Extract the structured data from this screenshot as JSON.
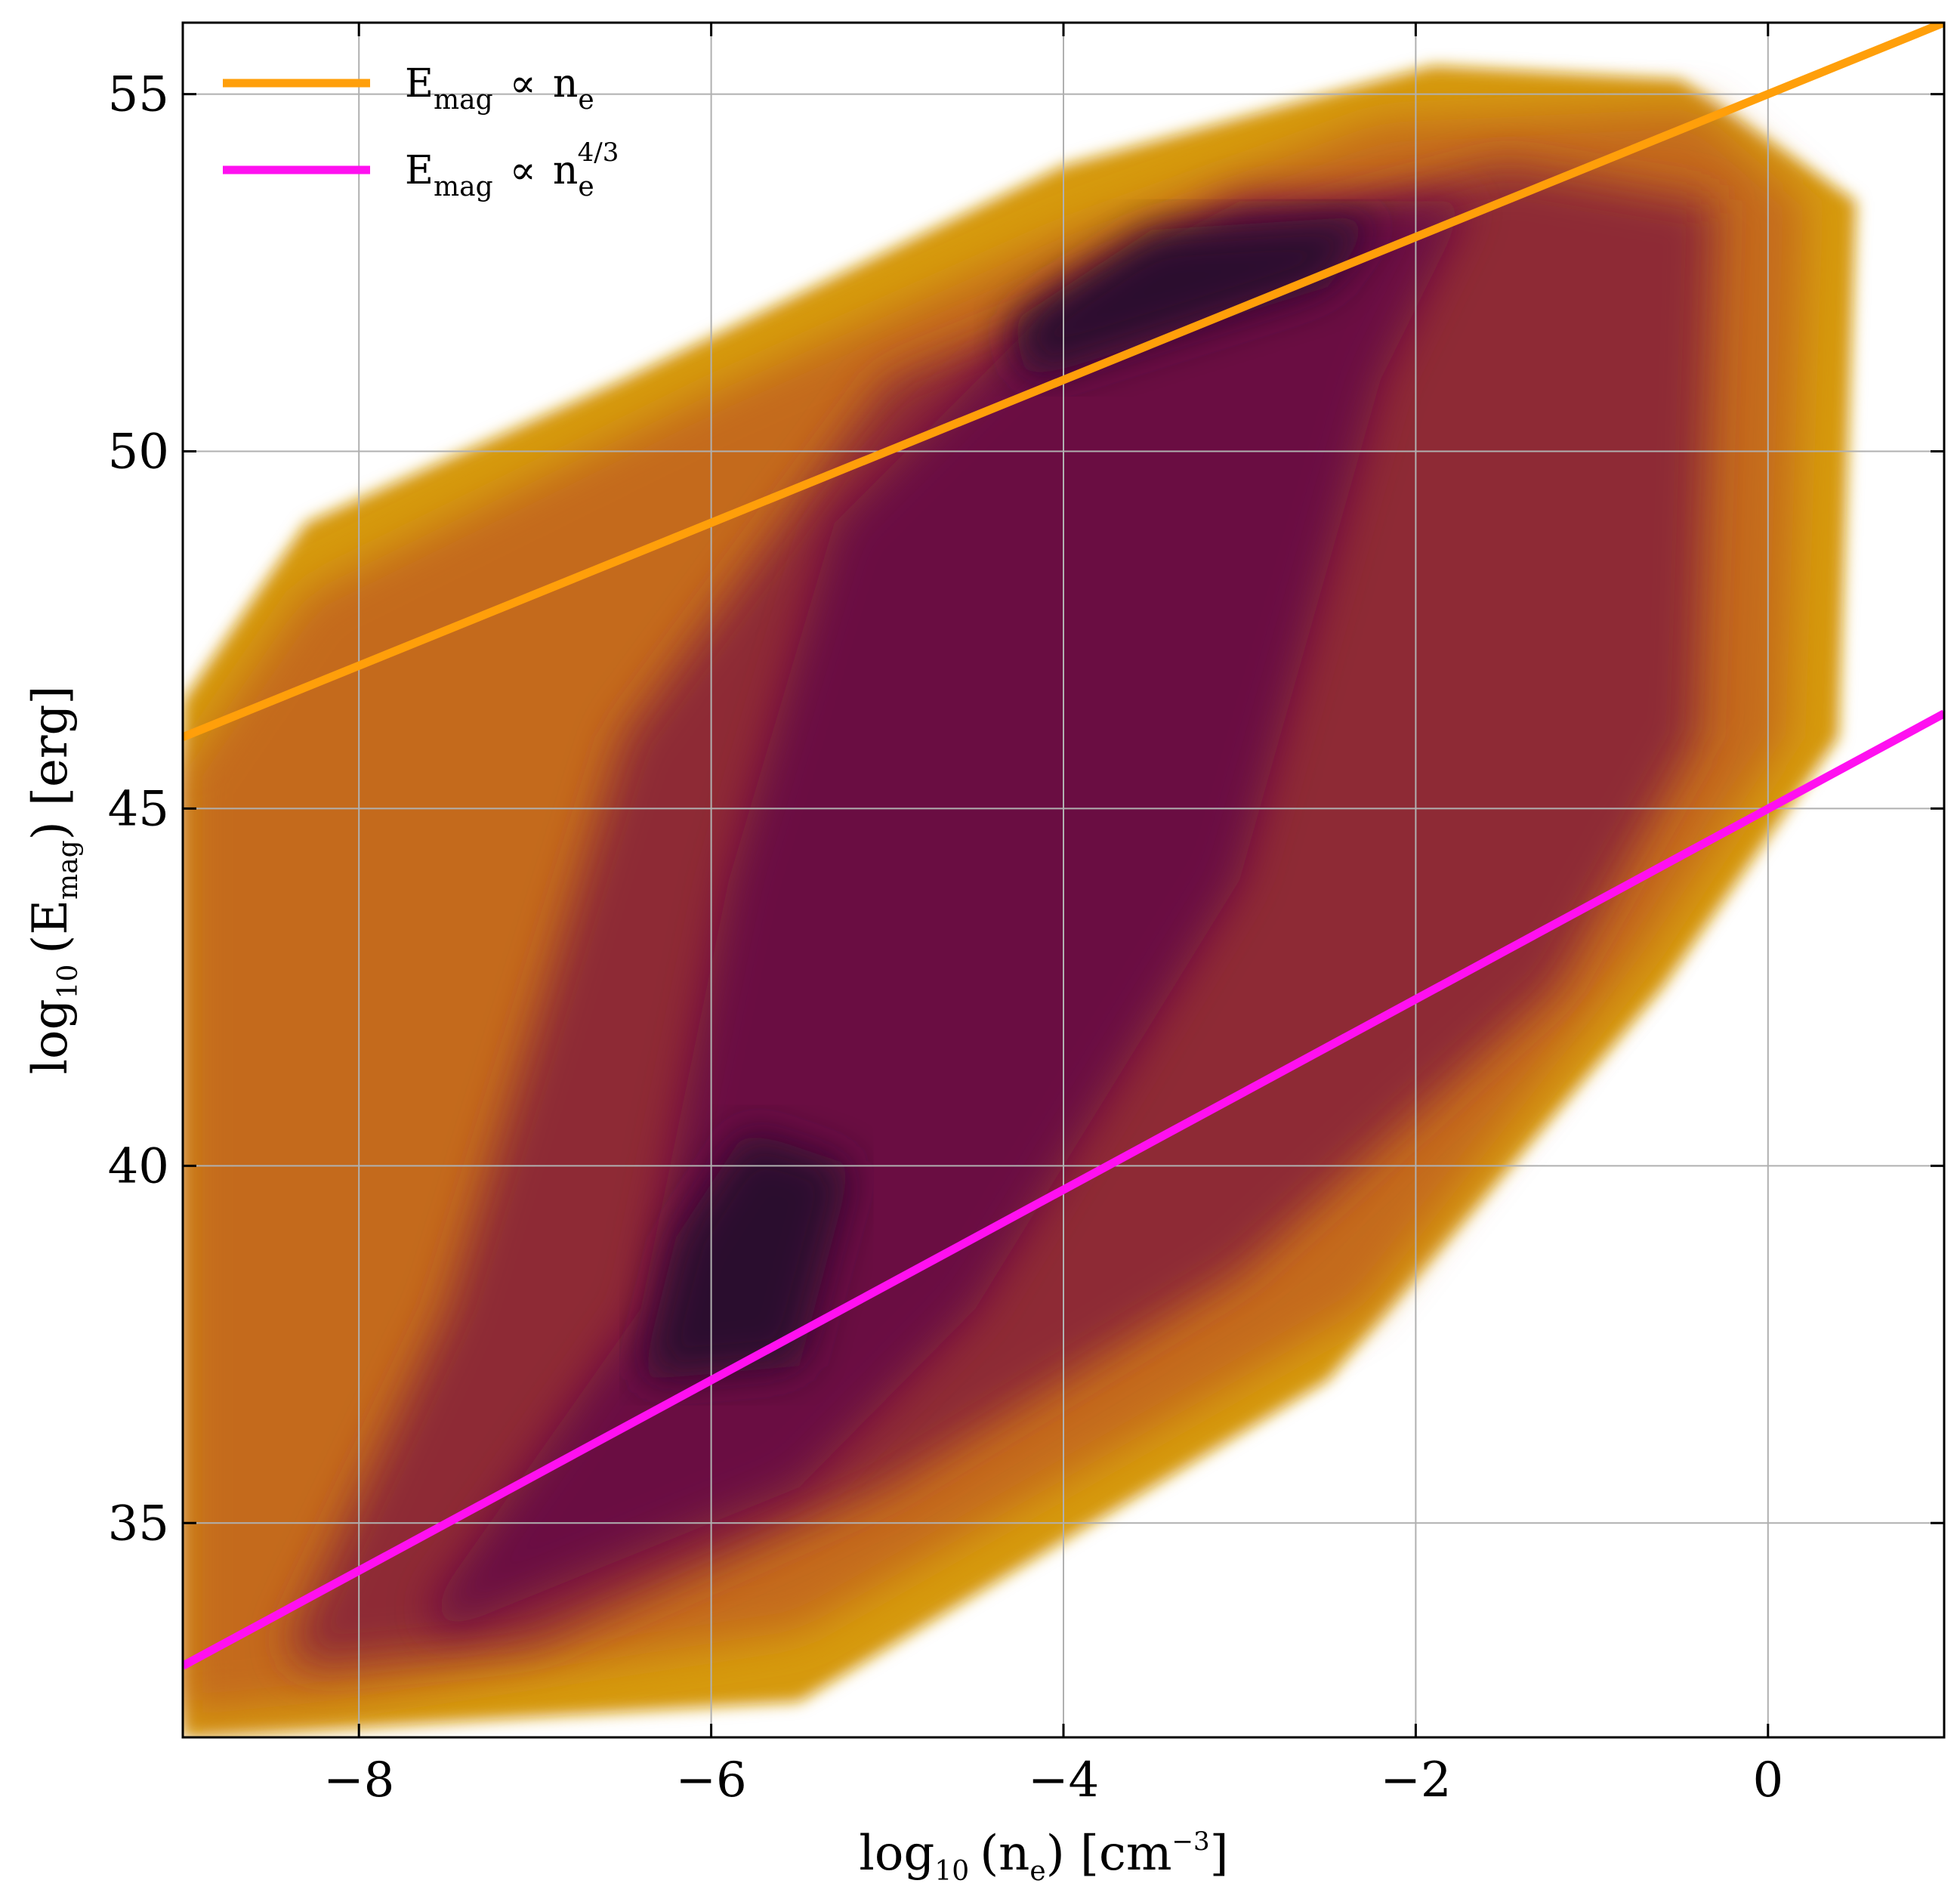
{
  "chart_data": {
    "type": "heatmap",
    "title": "",
    "x_axis": {
      "label_parts": {
        "base": "log",
        "sub": "10",
        "quantity": "(n",
        "quantity_sub": "e",
        "unit": ") [cm",
        "unit_sup": "−3",
        "end": "]"
      },
      "range": [
        -9,
        1
      ],
      "ticks": [
        -8,
        -6,
        -4,
        -2,
        0
      ],
      "tick_labels": [
        "−8",
        "−6",
        "−4",
        "−2",
        "0"
      ]
    },
    "y_axis": {
      "label_parts": {
        "base": "log",
        "sub": "10",
        "quantity": "(E",
        "quantity_sub": "mag",
        "unit": ") [erg]"
      },
      "range": [
        32,
        56
      ],
      "ticks": [
        35,
        40,
        45,
        50,
        55
      ],
      "tick_labels": [
        "35",
        "40",
        "45",
        "50",
        "55"
      ]
    },
    "grid": true,
    "legend_position": "top-left",
    "series": [
      {
        "name_parts": {
          "e": "E",
          "e_sub": "mag",
          "prop": "∝",
          "n": "n",
          "n_sub": "e",
          "n_sup": ""
        },
        "type": "line",
        "color": "#ff9f0a",
        "slope": 1,
        "x": [
          -9,
          1
        ],
        "y": [
          46,
          56
        ]
      },
      {
        "name_parts": {
          "e": "E",
          "e_sub": "mag",
          "prop": "∝",
          "n": "n",
          "n_sub": "e",
          "n_sup": "4/3"
        },
        "type": "line",
        "color": "#ff10f0",
        "slope": 1.3333,
        "x": [
          -9,
          1
        ],
        "y": [
          33,
          46.33
        ]
      }
    ],
    "density": {
      "colormap": [
        "#d5ddb0",
        "#d69a10",
        "#c46a1e",
        "#8e2b34",
        "#6a0a42",
        "#2b0a2e"
      ],
      "regions": [
        {
          "shape": "outer",
          "points": [
            [
              -9,
              32
            ],
            [
              -8.3,
              32.1
            ],
            [
              -5.5,
              32.5
            ],
            [
              -2.5,
              37
            ],
            [
              -0.6,
              42.5
            ],
            [
              0.4,
              46
            ],
            [
              0.5,
              53.5
            ],
            [
              -0.5,
              55.2
            ],
            [
              -1.9,
              55.4
            ],
            [
              -4,
              54
            ],
            [
              -6.5,
              51
            ],
            [
              -8.3,
              49
            ],
            [
              -9,
              46.5
            ]
          ],
          "level": 0.1
        },
        {
          "shape": "mid",
          "points": [
            [
              -9,
              32.3
            ],
            [
              -8.2,
              32.5
            ],
            [
              -5.5,
              33.5
            ],
            [
              -2.3,
              38
            ],
            [
              -0.7,
              43
            ],
            [
              0.1,
              46
            ],
            [
              0.2,
              53.5
            ],
            [
              -0.4,
              54.8
            ],
            [
              -2.2,
              54.6
            ],
            [
              -4,
              53
            ],
            [
              -6,
              50.8
            ],
            [
              -8.3,
              48
            ],
            [
              -9,
              45.5
            ]
          ],
          "level": 0.3
        },
        {
          "shape": "inner",
          "points": [
            [
              -8.3,
              33
            ],
            [
              -7,
              33.3
            ],
            [
              -5,
              35.5
            ],
            [
              -3,
              38.5
            ],
            [
              -1.2,
              42.5
            ],
            [
              -0.4,
              46
            ],
            [
              -0.3,
              53.5
            ],
            [
              -1.5,
              54
            ],
            [
              -3,
              53
            ],
            [
              -5,
              51
            ],
            [
              -6.5,
              46
            ],
            [
              -7.5,
              38
            ],
            [
              -8.4,
              33.3
            ]
          ],
          "level": 0.55
        },
        {
          "shape": "core",
          "points": [
            [
              -7.5,
              33.5
            ],
            [
              -5.5,
              35.5
            ],
            [
              -4.5,
              38
            ],
            [
              -3,
              44
            ],
            [
              -2.2,
              51
            ],
            [
              -1.7,
              53.5
            ],
            [
              -3,
              53.5
            ],
            [
              -4,
              52.2
            ],
            [
              -5.3,
              49
            ],
            [
              -5.9,
              44
            ],
            [
              -6.4,
              38
            ],
            [
              -7.6,
              33.8
            ]
          ],
          "level": 0.8
        },
        {
          "shape": "peak",
          "points": [
            [
              -6.4,
              37
            ],
            [
              -5.5,
              37.2
            ],
            [
              -5.2,
              40
            ],
            [
              -5.8,
              40.5
            ],
            [
              -6.2,
              39
            ]
          ],
          "level": 0.95
        },
        {
          "shape": "peak2",
          "points": [
            [
              -4.2,
              51
            ],
            [
              -2.5,
              52.3
            ],
            [
              -2.2,
              53.3
            ],
            [
              -3.5,
              53.1
            ],
            [
              -4.3,
              51.8
            ]
          ],
          "level": 0.95
        }
      ]
    }
  }
}
